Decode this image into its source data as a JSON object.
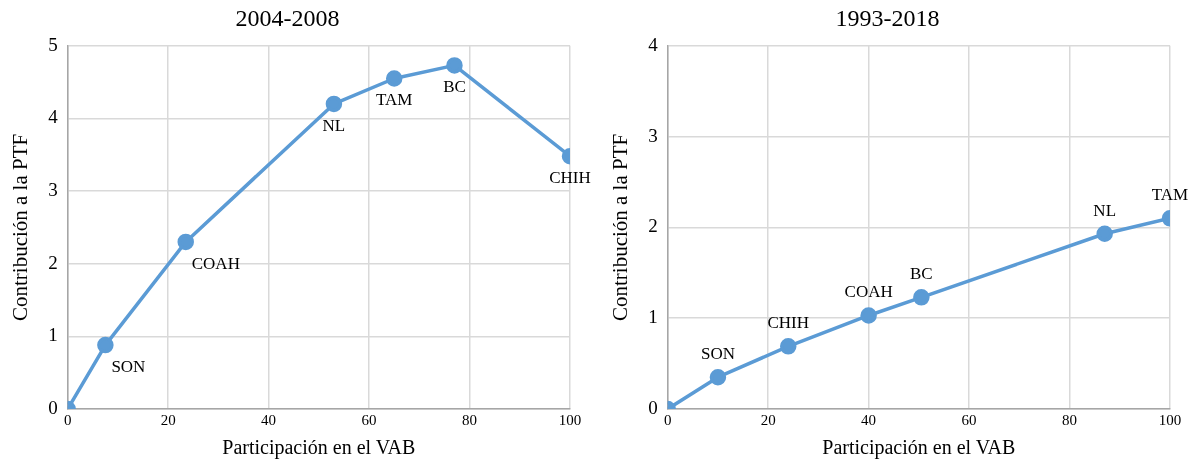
{
  "chart_data": [
    {
      "type": "line",
      "title": "2004-2008",
      "xlabel": "Participación en el VAB",
      "ylabel": "Contribución a la PTF",
      "x": [
        0,
        7.5,
        23.5,
        53,
        65,
        77,
        100
      ],
      "series": [
        {
          "color": "#5b9bd5",
          "values": [
            0,
            0.88,
            2.3,
            4.2,
            4.55,
            4.73,
            3.48
          ]
        }
      ],
      "xlim": [
        0,
        100
      ],
      "xticks": [
        0,
        20,
        40,
        60,
        80,
        100
      ],
      "ylim": [
        0,
        5
      ],
      "yticks": [
        0,
        1,
        2,
        3,
        4,
        5
      ],
      "grid": true,
      "legend": false,
      "marker": "circle",
      "line_style": "solid",
      "annotations": [
        {
          "text": "SON",
          "x": 7.5,
          "y": 0.88
        },
        {
          "text": "COAH",
          "x": 23.5,
          "y": 2.3
        },
        {
          "text": "NL",
          "x": 53,
          "y": 4.2
        },
        {
          "text": "TAM",
          "x": 65,
          "y": 4.55
        },
        {
          "text": "BC",
          "x": 77,
          "y": 4.73
        },
        {
          "text": "CHIH",
          "x": 100,
          "y": 3.48
        }
      ]
    },
    {
      "type": "line",
      "title": "1993-2018",
      "xlabel": "Participación en el VAB",
      "ylabel": "Contribución a la PTF",
      "x": [
        0,
        10,
        24,
        40,
        50.5,
        87,
        100
      ],
      "series": [
        {
          "color": "#5b9bd5",
          "values": [
            0,
            0.35,
            0.69,
            1.03,
            1.23,
            1.93,
            2.1
          ]
        }
      ],
      "xlim": [
        0,
        100
      ],
      "xticks": [
        0,
        20,
        40,
        60,
        80,
        100
      ],
      "ylim": [
        0,
        4
      ],
      "yticks": [
        0,
        1,
        2,
        3,
        4
      ],
      "grid": true,
      "legend": false,
      "marker": "circle",
      "line_style": "solid",
      "annotations": [
        {
          "text": "SON",
          "x": 10,
          "y": 0.35
        },
        {
          "text": "CHIH",
          "x": 24,
          "y": 0.69
        },
        {
          "text": "COAH",
          "x": 40,
          "y": 1.03
        },
        {
          "text": "BC",
          "x": 50.5,
          "y": 1.23
        },
        {
          "text": "NL",
          "x": 87,
          "y": 1.93
        },
        {
          "text": "TAM",
          "x": 100,
          "y": 2.1
        }
      ]
    }
  ]
}
